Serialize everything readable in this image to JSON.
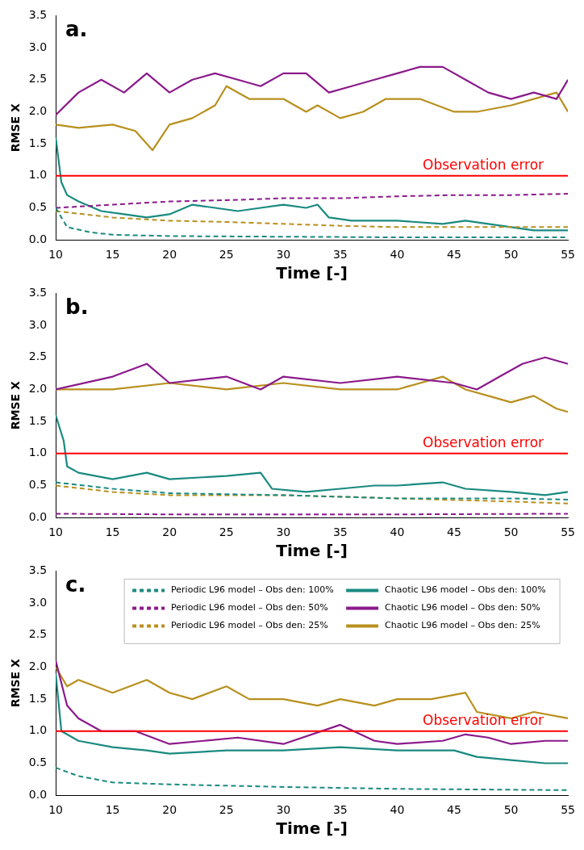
{
  "chart_data": [
    {
      "type": "line",
      "title": "a.",
      "xlabel": "Time [-]",
      "ylabel": "RMSE X",
      "xlim": [
        10,
        55
      ],
      "xticks": [
        10,
        15,
        20,
        25,
        30,
        35,
        40,
        45,
        50,
        55
      ],
      "ylim": [
        0,
        3.5
      ],
      "yticks": [
        {
          "value": 0,
          "label": "0.0"
        },
        {
          "value": 0.5,
          "label": "0.5"
        },
        {
          "value": 1,
          "label": "1.0"
        },
        {
          "value": 1.5,
          "label": "1.5"
        },
        {
          "value": 2,
          "label": "2.0"
        },
        {
          "value": 2.5,
          "label": "2.5"
        },
        {
          "value": 3,
          "label": "3.0"
        },
        {
          "value": 3.5,
          "label": "3.5"
        }
      ],
      "marker": "none",
      "legend": false,
      "grid": false,
      "ref_lines": [
        {
          "axis": "y",
          "value": 1,
          "label": "Observation error",
          "color": "#ff0000"
        }
      ],
      "series": [
        {
          "color": "#1a8a80",
          "line_style": "dashed",
          "x": [
            10,
            11,
            13,
            15,
            20,
            30,
            40,
            55
          ],
          "values": [
            0.5,
            0.2,
            0.12,
            0.08,
            0.06,
            0.05,
            0.04,
            0.04
          ]
        },
        {
          "color": "#8b1a8b",
          "line_style": "dashed",
          "x": [
            10,
            15,
            20,
            25,
            30,
            35,
            40,
            45,
            50,
            55
          ],
          "values": [
            0.5,
            0.55,
            0.6,
            0.62,
            0.65,
            0.65,
            0.68,
            0.7,
            0.7,
            0.72
          ]
        },
        {
          "color": "#b8901e",
          "line_style": "dashed",
          "x": [
            10,
            15,
            20,
            25,
            30,
            35,
            40,
            45,
            50,
            55
          ],
          "values": [
            0.45,
            0.35,
            0.3,
            0.28,
            0.25,
            0.22,
            0.2,
            0.2,
            0.2,
            0.2
          ]
        },
        {
          "color": "#1a8a80",
          "line_style": "solid",
          "x": [
            10,
            10.5,
            11,
            12,
            14,
            16,
            18,
            20,
            22,
            24,
            26,
            28,
            30,
            32,
            33,
            34,
            36,
            40,
            44,
            46,
            48,
            50,
            52,
            55
          ],
          "values": [
            1.6,
            0.9,
            0.7,
            0.6,
            0.45,
            0.4,
            0.35,
            0.4,
            0.55,
            0.5,
            0.45,
            0.5,
            0.55,
            0.5,
            0.55,
            0.35,
            0.3,
            0.3,
            0.25,
            0.3,
            0.25,
            0.2,
            0.15,
            0.15
          ]
        },
        {
          "color": "#8b1a8b",
          "line_style": "solid",
          "x": [
            10,
            12,
            14,
            16,
            18,
            20,
            22,
            24,
            26,
            28,
            30,
            32,
            34,
            36,
            38,
            40,
            42,
            44,
            46,
            48,
            50,
            52,
            54,
            55
          ],
          "values": [
            1.95,
            2.3,
            2.5,
            2.3,
            2.6,
            2.3,
            2.5,
            2.6,
            2.5,
            2.4,
            2.6,
            2.6,
            2.3,
            2.4,
            2.5,
            2.6,
            2.7,
            2.7,
            2.5,
            2.3,
            2.2,
            2.3,
            2.2,
            2.5
          ]
        },
        {
          "color": "#b8901e",
          "line_style": "solid",
          "x": [
            10,
            12,
            15,
            17,
            18.5,
            20,
            22,
            24,
            25,
            27,
            30,
            32,
            33,
            35,
            37,
            39,
            42,
            45,
            47,
            50,
            52,
            54,
            55
          ],
          "values": [
            1.8,
            1.75,
            1.8,
            1.7,
            1.4,
            1.8,
            1.9,
            2.1,
            2.4,
            2.2,
            2.2,
            2.0,
            2.1,
            1.9,
            2.0,
            2.2,
            2.2,
            2.0,
            2.0,
            2.1,
            2.2,
            2.3,
            2.0
          ]
        }
      ]
    },
    {
      "type": "line",
      "title": "b.",
      "xlabel": "Time [-]",
      "ylabel": "RMSE X",
      "xlim": [
        10,
        55
      ],
      "xticks": [
        10,
        15,
        20,
        25,
        30,
        35,
        40,
        45,
        50,
        55
      ],
      "ylim": [
        0,
        3.5
      ],
      "yticks": [
        {
          "value": 0,
          "label": "0.0"
        },
        {
          "value": 0.5,
          "label": "0.5"
        },
        {
          "value": 1,
          "label": "1.0"
        },
        {
          "value": 1.5,
          "label": "1.5"
        },
        {
          "value": 2,
          "label": "2.0"
        },
        {
          "value": 2.5,
          "label": "2.5"
        },
        {
          "value": 3,
          "label": "3.0"
        },
        {
          "value": 3.5,
          "label": "3.5"
        }
      ],
      "marker": "none",
      "legend": false,
      "grid": false,
      "ref_lines": [
        {
          "axis": "y",
          "value": 1,
          "label": "Observation error",
          "color": "#ff0000"
        }
      ],
      "series": [
        {
          "color": "#1a8a80",
          "line_style": "dashed",
          "x": [
            10,
            15,
            20,
            30,
            40,
            50,
            55
          ],
          "values": [
            0.55,
            0.45,
            0.38,
            0.35,
            0.3,
            0.3,
            0.28
          ]
        },
        {
          "color": "#8b1a8b",
          "line_style": "dashed",
          "x": [
            10,
            20,
            40,
            55
          ],
          "values": [
            0.06,
            0.05,
            0.05,
            0.06
          ]
        },
        {
          "color": "#b8901e",
          "line_style": "dashed",
          "x": [
            10,
            15,
            20,
            30,
            40,
            50,
            55
          ],
          "values": [
            0.5,
            0.4,
            0.35,
            0.35,
            0.3,
            0.25,
            0.22
          ]
        },
        {
          "color": "#1a8a80",
          "line_style": "solid",
          "x": [
            10,
            10.7,
            11,
            12,
            15,
            18,
            20,
            25,
            28,
            29,
            32,
            35,
            38,
            40,
            44,
            46,
            50,
            53,
            55
          ],
          "values": [
            1.6,
            1.2,
            0.8,
            0.7,
            0.6,
            0.7,
            0.6,
            0.65,
            0.7,
            0.45,
            0.4,
            0.45,
            0.5,
            0.5,
            0.55,
            0.45,
            0.4,
            0.35,
            0.4
          ]
        },
        {
          "color": "#8b1a8b",
          "line_style": "solid",
          "x": [
            10,
            15,
            18,
            20,
            25,
            28,
            30,
            35,
            40,
            45,
            47,
            49,
            51,
            53,
            55
          ],
          "values": [
            2.0,
            2.2,
            2.4,
            2.1,
            2.2,
            2.0,
            2.2,
            2.1,
            2.2,
            2.1,
            2.0,
            2.2,
            2.4,
            2.5,
            2.4
          ]
        },
        {
          "color": "#b8901e",
          "line_style": "solid",
          "x": [
            10,
            15,
            20,
            25,
            30,
            35,
            40,
            44,
            46,
            48,
            50,
            52,
            54,
            55
          ],
          "values": [
            2.0,
            2.0,
            2.1,
            2.0,
            2.1,
            2.0,
            2.0,
            2.2,
            2.0,
            1.9,
            1.8,
            1.9,
            1.7,
            1.65
          ]
        }
      ]
    },
    {
      "type": "line",
      "title": "c.",
      "xlabel": "Time [-]",
      "ylabel": "RMSE X",
      "xlim": [
        10,
        55
      ],
      "xticks": [
        10,
        15,
        20,
        25,
        30,
        35,
        40,
        45,
        50,
        55
      ],
      "ylim": [
        0,
        3.5
      ],
      "yticks": [
        {
          "value": 0,
          "label": "0.0"
        },
        {
          "value": 0.5,
          "label": "0.5"
        },
        {
          "value": 1,
          "label": "1.0"
        },
        {
          "value": 1.5,
          "label": "1.5"
        },
        {
          "value": 2,
          "label": "2.0"
        },
        {
          "value": 2.5,
          "label": "2.5"
        },
        {
          "value": 3,
          "label": "3.0"
        },
        {
          "value": 3.5,
          "label": "3.5"
        }
      ],
      "marker": "none",
      "legend": "top right",
      "grid": false,
      "ref_lines": [
        {
          "axis": "y",
          "value": 1,
          "label": "Observation error",
          "color": "#ff0000"
        }
      ],
      "series": [
        {
          "name": "Periodic L96 model – Obs den: 100%",
          "color": "#1a8a80",
          "line_style": "dashed",
          "x": [
            10,
            12,
            15,
            20,
            25,
            30,
            40,
            55
          ],
          "values": [
            0.43,
            0.3,
            0.2,
            0.17,
            0.15,
            0.13,
            0.1,
            0.08
          ]
        },
        {
          "name": "Periodic L96 model – Obs den: 50%",
          "color": "#8b1a8b",
          "line_style": "dashed"
        },
        {
          "name": "Periodic L96 model – Obs den: 25%",
          "color": "#b8901e",
          "line_style": "dashed"
        },
        {
          "name": "Chaotic L96 model – Obs den: 100%",
          "color": "#1a8a80",
          "line_style": "solid",
          "x": [
            10,
            10.5,
            12,
            15,
            18,
            20,
            25,
            30,
            35,
            40,
            45,
            47,
            50,
            53,
            55
          ],
          "values": [
            1.9,
            1.0,
            0.85,
            0.75,
            0.7,
            0.65,
            0.7,
            0.7,
            0.75,
            0.7,
            0.7,
            0.6,
            0.55,
            0.5,
            0.5
          ]
        },
        {
          "name": "Chaotic L96 model – Obs den: 50%",
          "color": "#8b1a8b",
          "line_style": "solid",
          "x": [
            10,
            11,
            12,
            14,
            17,
            20,
            23,
            26,
            30,
            35,
            38,
            40,
            44,
            46,
            48,
            50,
            53,
            55
          ],
          "values": [
            2.1,
            1.4,
            1.2,
            1.0,
            1.0,
            0.8,
            0.85,
            0.9,
            0.8,
            1.1,
            0.85,
            0.8,
            0.85,
            0.95,
            0.9,
            0.8,
            0.85,
            0.85
          ]
        },
        {
          "name": "Chaotic L96 model – Obs den: 25%",
          "color": "#b8901e",
          "line_style": "solid",
          "x": [
            10,
            11,
            12,
            15,
            18,
            20,
            22,
            25,
            27,
            30,
            33,
            35,
            38,
            40,
            43,
            46,
            47,
            50,
            52,
            55
          ],
          "values": [
            2.0,
            1.7,
            1.8,
            1.6,
            1.8,
            1.6,
            1.5,
            1.7,
            1.5,
            1.5,
            1.4,
            1.5,
            1.4,
            1.5,
            1.5,
            1.6,
            1.3,
            1.2,
            1.3,
            1.2
          ]
        }
      ]
    }
  ]
}
